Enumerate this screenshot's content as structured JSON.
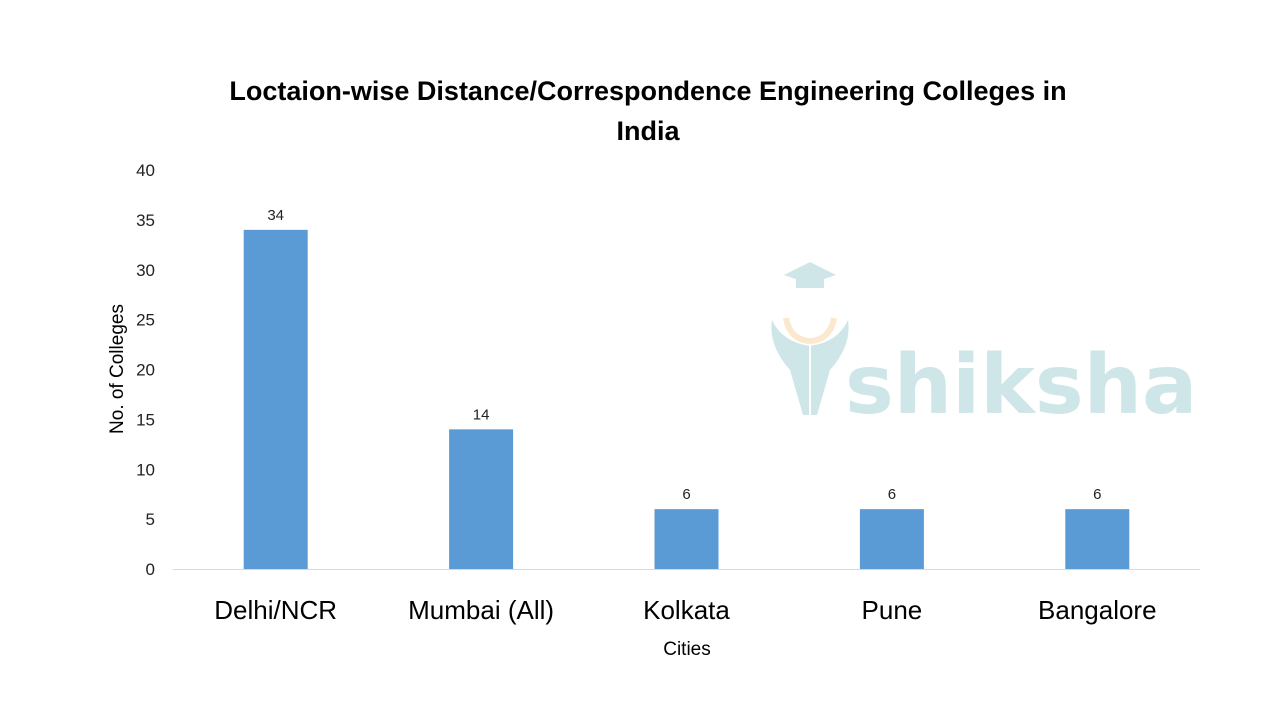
{
  "chart_data": {
    "type": "bar",
    "title_lines": [
      "Loctaion-wise Distance/Correspondence Engineering Colleges in",
      "India"
    ],
    "xlabel": "Cities",
    "ylabel": "No. of Colleges",
    "categories": [
      "Delhi/NCR",
      "Mumbai (All)",
      "Kolkata",
      "Pune",
      "Bangalore"
    ],
    "values": [
      34,
      14,
      6,
      6,
      6
    ],
    "ylim": [
      0,
      40
    ],
    "yticks": [
      "0",
      "5",
      "10",
      "15",
      "20",
      "25",
      "30",
      "35",
      "40"
    ],
    "grid": false,
    "legend": "none",
    "data_labels": true,
    "bar_color": "#5B9BD5"
  },
  "watermark": {
    "text": "shiksha",
    "color": "#cfe6e8"
  }
}
